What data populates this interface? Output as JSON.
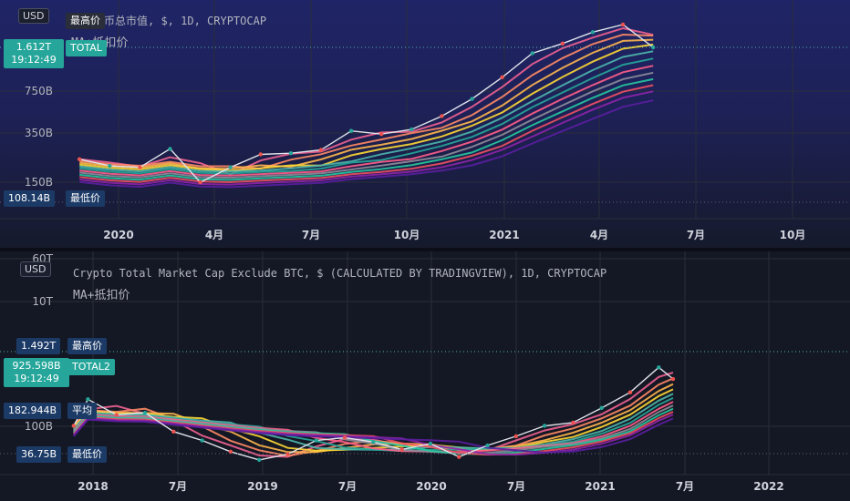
{
  "colors": {
    "ma": [
      "#f06292",
      "#ff8a65",
      "#ffb74d",
      "#fdd835",
      "#4db6ac",
      "#26a69a",
      "#ff5e8a",
      "#8d8d9a",
      "#26c6a0",
      "#ef4f63",
      "#8e24aa",
      "#5a1ea0"
    ]
  },
  "top": {
    "title": "加密货币总市值, $, 1D, CRYPTOCAP",
    "subtitle": "MA+抵扣价",
    "currency": "USD",
    "tags": [
      {
        "value": "1.612T",
        "time": "19:12:49",
        "label": "TOTAL"
      },
      {
        "value": "",
        "label": "最高价"
      },
      {
        "value": "108.14B",
        "label": "最低价"
      }
    ]
  },
  "bottom": {
    "title": "Crypto Total Market Cap Exclude BTC, $ (CALCULATED BY TRADINGVIEW), 1D, CRYPTOCAP",
    "subtitle": "MA+抵扣价",
    "currency": "USD",
    "tags": [
      {
        "value": "1.492T",
        "label": "最高价"
      },
      {
        "value": "925.598B",
        "time": "19:12:49",
        "label": "TOTAL2"
      },
      {
        "value": "182.944B",
        "label": "平均"
      },
      {
        "value": "36.75B",
        "label": "最低价"
      }
    ]
  },
  "chart_data": [
    {
      "type": "line",
      "title": "加密货币总市值, $, 1D, CRYPTOCAP",
      "scale": "log",
      "y_ticks": [
        "750B",
        "350B",
        "150B"
      ],
      "x_ticks": [
        "2020",
        "4月",
        "7月",
        "10月",
        "2021",
        "4月",
        "7月",
        "10月"
      ],
      "x": [
        "2019-11",
        "2019-12",
        "2020-01",
        "2020-02",
        "2020-03",
        "2020-04",
        "2020-05",
        "2020-06",
        "2020-07",
        "2020-08",
        "2020-09",
        "2020-10",
        "2020-11",
        "2020-12",
        "2021-01",
        "2021-02",
        "2021-03",
        "2021-04",
        "2021-05",
        "2021-06"
      ],
      "series": [
        {
          "values": [
            225,
            200,
            195,
            270,
            150,
            195,
            245,
            250,
            265,
            370,
            350,
            380,
            480,
            650,
            950,
            1450,
            1720,
            2100,
            2400,
            1610
          ]
        }
      ],
      "ylim": [
        90,
        2600
      ]
    },
    {
      "type": "line",
      "title": "Crypto Total Market Cap Exclude BTC, $ (CALCULATED BY TRADINGVIEW), 1D, CRYPTOCAP",
      "scale": "log",
      "y_ticks": [
        "60T",
        "10T",
        "100B"
      ],
      "x_ticks": [
        "2018",
        "7月",
        "2019",
        "7月",
        "2020",
        "7月",
        "2021",
        "7月",
        "2022"
      ],
      "x": [
        "2017-12",
        "2018-01",
        "2018-03",
        "2018-05",
        "2018-07",
        "2018-09",
        "2018-11",
        "2019-01",
        "2019-03",
        "2019-05",
        "2019-07",
        "2019-09",
        "2019-11",
        "2020-01",
        "2020-03",
        "2020-05",
        "2020-07",
        "2020-09",
        "2020-11",
        "2021-01",
        "2021-03",
        "2021-05",
        "2021-06"
      ],
      "series": [
        {
          "values": [
            150,
            420,
            230,
            250,
            120,
            85,
            55,
            40,
            50,
            85,
            95,
            80,
            60,
            75,
            45,
            70,
            100,
            150,
            170,
            300,
            550,
            1450,
            925
          ]
        }
      ],
      "ylim": [
        30,
        60000
      ]
    }
  ]
}
